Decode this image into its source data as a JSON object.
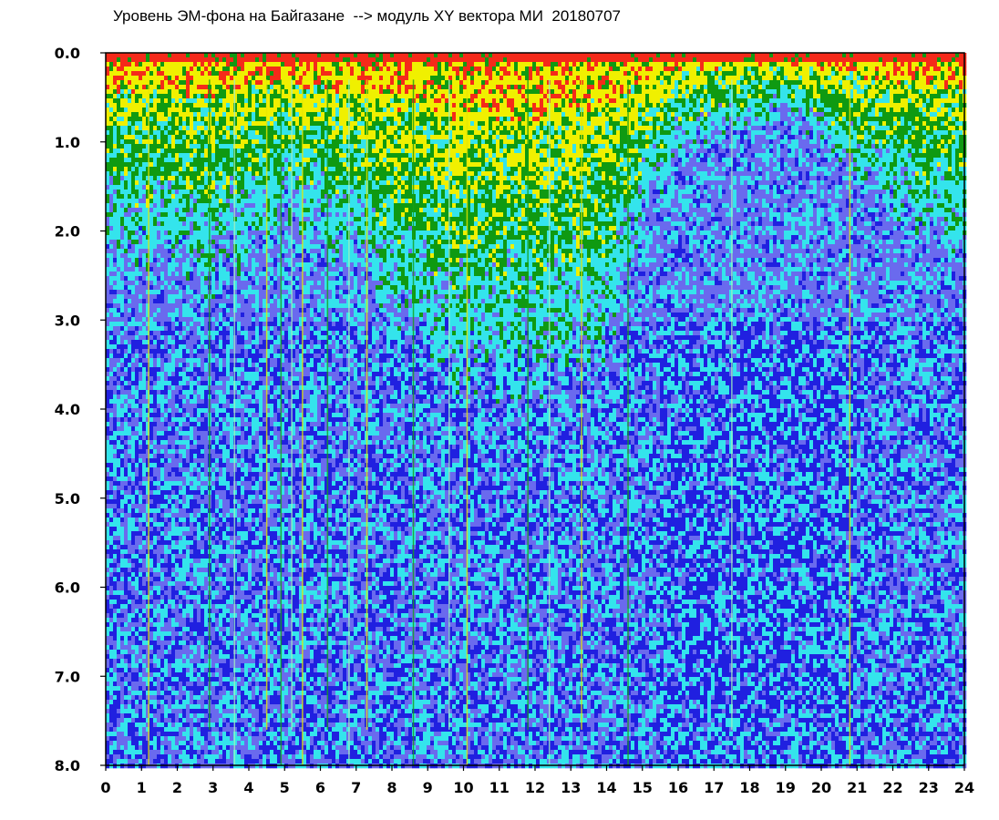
{
  "chart_data": {
    "type": "heatmap",
    "title": "Уровень ЭМ-фона на Байгазане  --> модуль XY вектора МИ  20180707",
    "xlabel": "",
    "ylabel": "",
    "x_ticks": [
      "0",
      "1",
      "2",
      "3",
      "4",
      "5",
      "6",
      "7",
      "8",
      "9",
      "10",
      "11",
      "12",
      "13",
      "14",
      "15",
      "16",
      "17",
      "18",
      "19",
      "20",
      "21",
      "22",
      "23",
      "24"
    ],
    "y_ticks": [
      "0.0",
      "1.0",
      "2.0",
      "3.0",
      "4.0",
      "5.0",
      "6.0",
      "7.0",
      "8.0"
    ],
    "xlim": [
      0,
      24
    ],
    "ylim": [
      0,
      8
    ],
    "y_inverted": true,
    "grid": false,
    "colorscale": [
      "#2020e0",
      "#6a6aee",
      "#34e4ec",
      "#0f9a12",
      "#f0f000",
      "#f52a1a"
    ],
    "intensity_profile": [
      {
        "hour": 0,
        "level": 1.6
      },
      {
        "hour": 1,
        "level": 1.7
      },
      {
        "hour": 2,
        "level": 1.7
      },
      {
        "hour": 3,
        "level": 1.9
      },
      {
        "hour": 4,
        "level": 1.6
      },
      {
        "hour": 5,
        "level": 1.3
      },
      {
        "hour": 6,
        "level": 1.6
      },
      {
        "hour": 7,
        "level": 1.7
      },
      {
        "hour": 8,
        "level": 2.2
      },
      {
        "hour": 9,
        "level": 2.6
      },
      {
        "hour": 10,
        "level": 2.7
      },
      {
        "hour": 11,
        "level": 2.7
      },
      {
        "hour": 12,
        "level": 2.6
      },
      {
        "hour": 13,
        "level": 2.6
      },
      {
        "hour": 14,
        "level": 2.3
      },
      {
        "hour": 15,
        "level": 1.3
      },
      {
        "hour": 16,
        "level": 0.8
      },
      {
        "hour": 17,
        "level": 0.7
      },
      {
        "hour": 18,
        "level": 0.6
      },
      {
        "hour": 19,
        "level": 0.5
      },
      {
        "hour": 20,
        "level": 0.7
      },
      {
        "hour": 21,
        "level": 1.0
      },
      {
        "hour": 22,
        "level": 1.3
      },
      {
        "hour": 23,
        "level": 1.5
      },
      {
        "hour": 24,
        "level": 1.6
      }
    ]
  }
}
